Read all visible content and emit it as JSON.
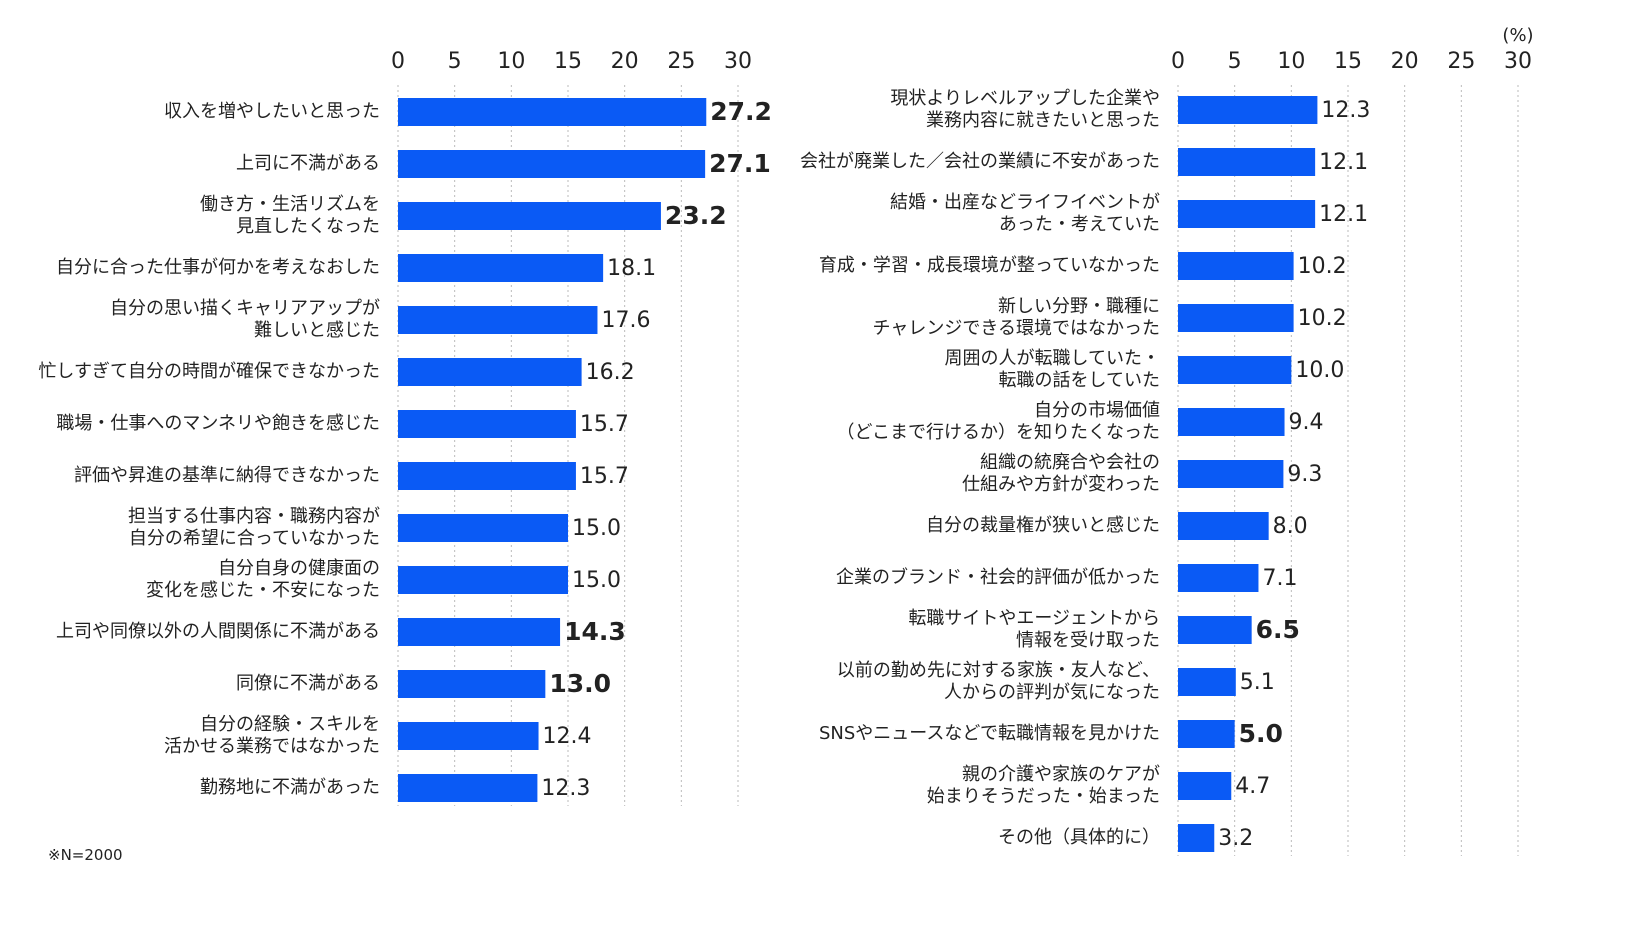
{
  "note": "※N=2000",
  "chart_data": [
    {
      "type": "bar",
      "orientation": "horizontal",
      "categories": [
        "収入を増やしたいと思った",
        "上司に不満がある",
        "働き方・生活リズムを\n見直したくなった",
        "自分に合った仕事が何かを考えなおした",
        "自分の思い描くキャリアアップが\n難しいと感じた",
        "忙しすぎて自分の時間が確保できなかった",
        "職場・仕事へのマンネリや飽きを感じた",
        "評価や昇進の基準に納得できなかった",
        "担当する仕事内容・職務内容が\n自分の希望に合っていなかった",
        "自分自身の健康面の\n変化を感じた・不安になった",
        "上司や同僚以外の人間関係に不満がある",
        "同僚に不満がある",
        "自分の経験・スキルを\n活かせる業務ではなかった",
        "勤務地に不満があった"
      ],
      "values": [
        27.2,
        27.1,
        23.2,
        18.1,
        17.6,
        16.2,
        15.7,
        15.7,
        15.0,
        15.0,
        14.3,
        13.0,
        12.4,
        12.3
      ],
      "value_labels": [
        "27.2",
        "27.1",
        "23.2",
        "18.1",
        "17.6",
        "16.2",
        "15.7",
        "15.7",
        "15.0",
        "15.0",
        "14.3",
        "13.0",
        "12.4",
        "12.3"
      ],
      "highlight": [
        true,
        true,
        true,
        false,
        false,
        false,
        false,
        false,
        false,
        false,
        true,
        true,
        false,
        false
      ],
      "color": "#0a5af5",
      "highlight_color": "#e0174f",
      "xlim": [
        0,
        30
      ],
      "xticks": [
        0,
        5,
        10,
        15,
        20,
        25,
        30
      ],
      "grid": true
    },
    {
      "type": "bar",
      "orientation": "horizontal",
      "unit_label": "(%)",
      "categories": [
        "現状よりレベルアップした企業や\n業務内容に就きたいと思った",
        "会社が廃業した／会社の業績に不安があった",
        "結婚・出産などライフイベントが\nあった・考えていた",
        "育成・学習・成長環境が整っていなかった",
        "新しい分野・職種に\nチャレンジできる環境ではなかった",
        "周囲の人が転職していた・\n転職の話をしていた",
        "自分の市場価値\n（どこまで行けるか）を知りたくなった",
        "組織の統廃合や会社の\n仕組みや方針が変わった",
        "自分の裁量権が狭いと感じた",
        "企業のブランド・社会的評価が低かった",
        "転職サイトやエージェントから\n情報を受け取った",
        "以前の勤め先に対する家族・友人など、\n人からの評判が気になった",
        "SNSやニュースなどで転職情報を見かけた",
        "親の介護や家族のケアが\n始まりそうだった・始まった",
        "その他（具体的に）"
      ],
      "values": [
        12.3,
        12.1,
        12.1,
        10.2,
        10.2,
        10.0,
        9.4,
        9.3,
        8.0,
        7.1,
        6.5,
        5.1,
        5.0,
        4.7,
        3.2
      ],
      "value_labels": [
        "12.3",
        "12.1",
        "12.1",
        "10.2",
        "10.2",
        "10.0",
        "9.4",
        "9.3",
        "8.0",
        "7.1",
        "6.5",
        "5.1",
        "5.0",
        "4.7",
        "3.2"
      ],
      "highlight": [
        false,
        false,
        false,
        false,
        false,
        false,
        false,
        false,
        false,
        false,
        true,
        false,
        true,
        false,
        false
      ],
      "color": "#0a5af5",
      "highlight_color": "#e0174f",
      "xlim": [
        0,
        30
      ],
      "xticks": [
        0,
        5,
        10,
        15,
        20,
        25,
        30
      ],
      "grid": true
    }
  ]
}
